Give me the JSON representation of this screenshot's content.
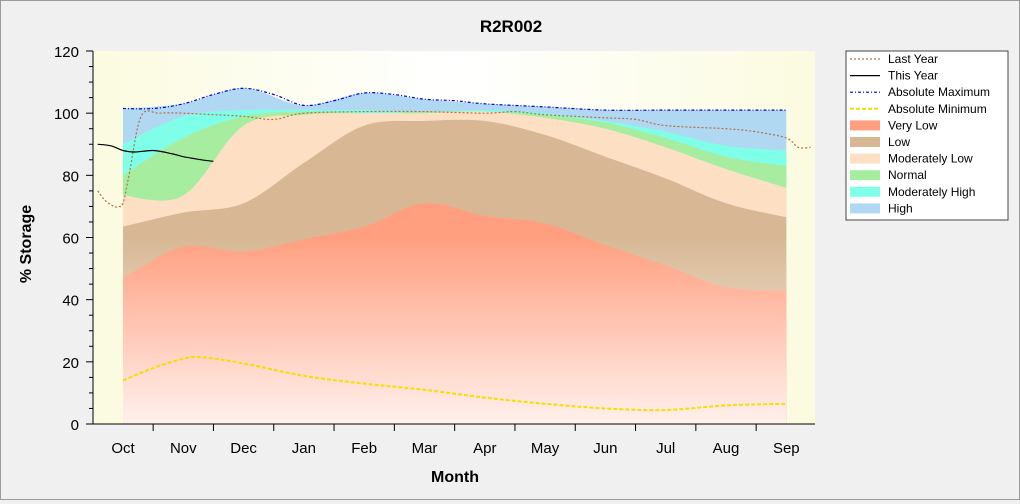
{
  "chart_data": {
    "type": "area",
    "title": "R2R002",
    "xlabel": "Month",
    "ylabel": "% Storage",
    "ylim": [
      0,
      120
    ],
    "y_ticks": [
      0,
      20,
      40,
      60,
      80,
      100,
      120
    ],
    "categories": [
      "Oct",
      "Nov",
      "Dec",
      "Jan",
      "Feb",
      "Mar",
      "Apr",
      "May",
      "Jun",
      "Jul",
      "Aug",
      "Sep"
    ],
    "legend_position": "right",
    "grid": false,
    "bands": [
      {
        "name": "Very Low",
        "upper": [
          47,
          57,
          55.5,
          59.5,
          63.5,
          71,
          67,
          64.5,
          57.5,
          51,
          44,
          43
        ],
        "color": "#ff9f80"
      },
      {
        "name": "Low",
        "upper": [
          63.5,
          68,
          71,
          84,
          96,
          97.5,
          97.5,
          93,
          86,
          79,
          71,
          66.5
        ],
        "color": "#d8b894"
      },
      {
        "name": "Moderately Low",
        "upper": [
          73.5,
          73.5,
          96,
          99.5,
          100,
          100,
          100.5,
          98.5,
          95,
          89,
          82,
          76
        ],
        "color": "#fde0c4"
      },
      {
        "name": "Normal",
        "upper": [
          80,
          92,
          99,
          100.5,
          100,
          100.5,
          100.5,
          99.5,
          97,
          92,
          86,
          83
        ],
        "color": "#a6eda0"
      },
      {
        "name": "Moderately High",
        "upper": [
          90,
          99,
          101,
          101,
          101,
          100.5,
          101,
          100,
          97.5,
          94,
          89.5,
          88
        ],
        "color": "#80ffe8"
      },
      {
        "name": "High",
        "upper": [
          101.5,
          103,
          108,
          102.5,
          106.5,
          104.5,
          103,
          102,
          101,
          101,
          101,
          101
        ],
        "color": "#b0d8f2"
      }
    ],
    "series": [
      {
        "name": "Last Year",
        "x": [
          -0.42,
          -0.3,
          -0.15,
          -0.08,
          0.0,
          0.1,
          0.3,
          0.6,
          1.0,
          1.5,
          2.0,
          2.5,
          3.0,
          4.0,
          5.0,
          6.0,
          6.5,
          7.0,
          8.0,
          8.5,
          9.0,
          10.0,
          10.5,
          11.0,
          11.2,
          11.4
        ],
        "values": [
          75,
          72,
          70,
          70,
          71,
          80,
          99,
          100,
          100,
          99.5,
          99,
          98,
          100,
          100.5,
          100.5,
          100,
          100.5,
          99.5,
          98.5,
          98,
          96,
          95,
          94,
          92,
          89,
          89
        ],
        "color": "#b07040"
      },
      {
        "name": "This Year",
        "x": [
          -0.42,
          -0.2,
          0.0,
          0.2,
          0.5,
          0.8,
          1.0,
          1.3,
          1.5
        ],
        "values": [
          90,
          89.5,
          88,
          87.5,
          88,
          87,
          86,
          85,
          84.5
        ],
        "color": "#000000"
      },
      {
        "name": "Absolute Maximum",
        "x": [
          0.0,
          0.5,
          1.0,
          1.5,
          2.0,
          2.5,
          3.0,
          3.5,
          4.0,
          4.5,
          5.0,
          5.5,
          6.0,
          7.0,
          8.0,
          9.0,
          10.0,
          11.0
        ],
        "values": [
          101.5,
          101.5,
          103,
          106,
          108,
          106,
          102.5,
          104,
          106.5,
          106,
          104.5,
          104,
          103,
          102,
          101,
          101,
          101,
          101
        ],
        "color": "#0000cc"
      },
      {
        "name": "Absolute Minimum",
        "x": [
          0.0,
          0.5,
          1.0,
          1.3,
          2.0,
          3.0,
          4.0,
          5.0,
          6.0,
          7.0,
          8.0,
          9.0,
          10.0,
          11.0
        ],
        "values": [
          14,
          18,
          21,
          21.5,
          19.5,
          15.5,
          13,
          11,
          8.5,
          6.5,
          5,
          4.5,
          6,
          6.5
        ],
        "color": "#f0e000"
      }
    ]
  },
  "legend": [
    {
      "label": "Last Year",
      "kind": "line",
      "color": "#b07040",
      "dash": "2,2"
    },
    {
      "label": "This Year",
      "kind": "line",
      "color": "#000000",
      "dash": ""
    },
    {
      "label": "Absolute Maximum",
      "kind": "line",
      "color": "#0000cc",
      "dash": "3,2,1,2"
    },
    {
      "label": "Absolute Minimum",
      "kind": "line",
      "color": "#f0e000",
      "dash": "4,2"
    },
    {
      "label": "Very Low",
      "kind": "box",
      "color": "#ff9f80"
    },
    {
      "label": "Low",
      "kind": "box",
      "color": "#d8b894"
    },
    {
      "label": "Moderately Low",
      "kind": "box",
      "color": "#fde0c4"
    },
    {
      "label": "Normal",
      "kind": "box",
      "color": "#a6eda0"
    },
    {
      "label": "Moderately High",
      "kind": "box",
      "color": "#80ffe8"
    },
    {
      "label": "High",
      "kind": "box",
      "color": "#b0d8f2"
    }
  ]
}
